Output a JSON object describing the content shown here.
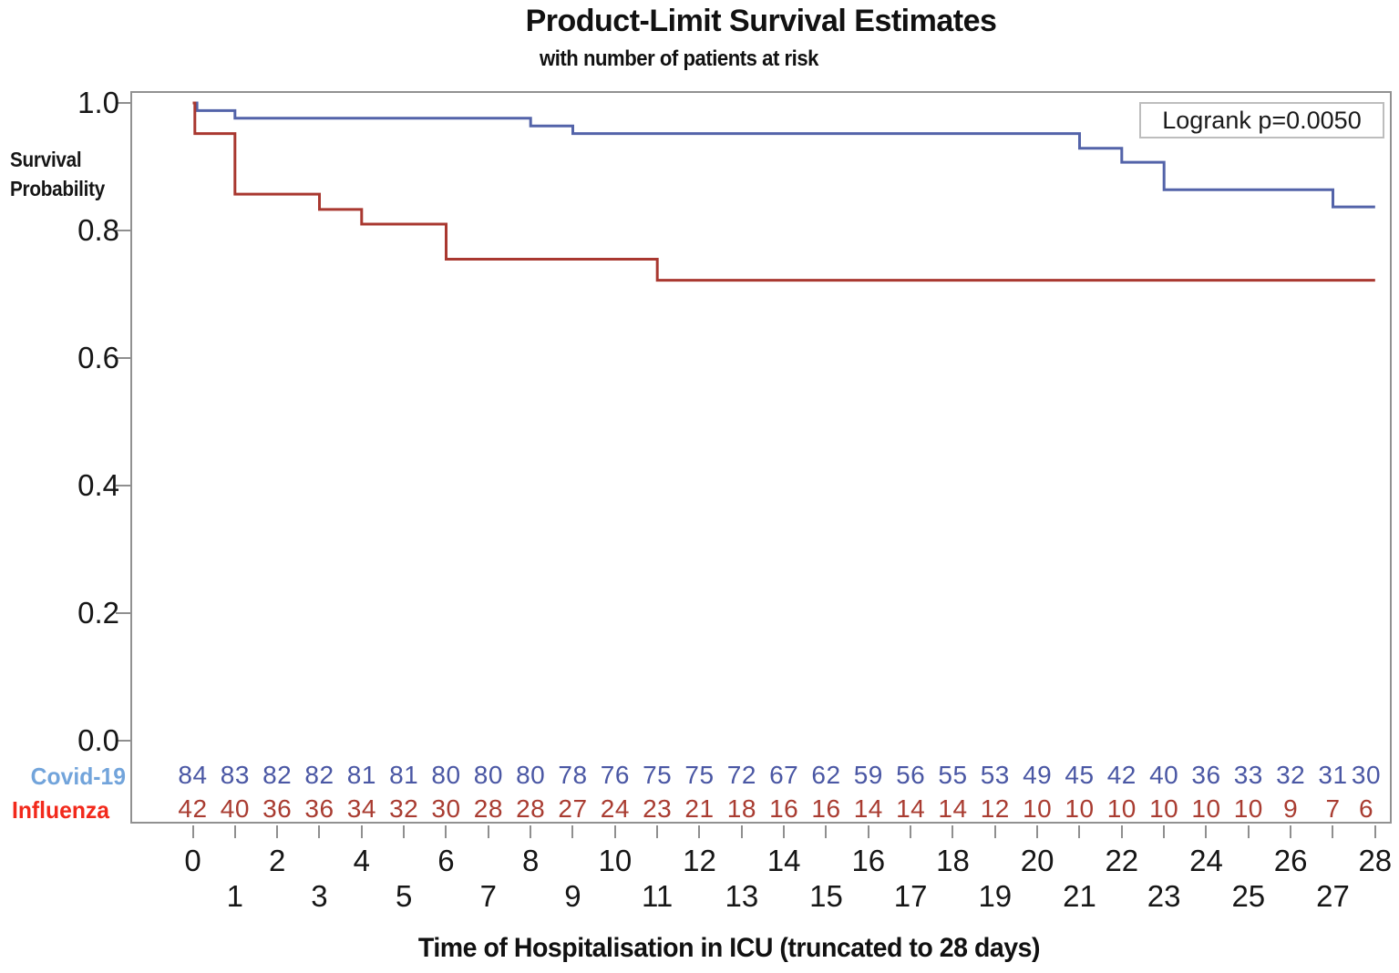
{
  "chart_data": {
    "type": "line",
    "variant": "kaplan-meier-step-plot",
    "title": "Product-Limit Survival Estimates",
    "subtitle": "with number of patients at risk",
    "xlabel": "Time of Hospitalisation in ICU (truncated to 28 days)",
    "ylabel": "Survival Probability",
    "ylabel_lines": [
      "Survival",
      "Probability"
    ],
    "annotation": "Logrank p=0.0050",
    "grid": false,
    "legend_position": "top-right-inside",
    "xlim": [
      0,
      28
    ],
    "ylim": [
      0.0,
      1.0
    ],
    "y_ticks": [
      "1.0",
      "0.8",
      "0.6",
      "0.4",
      "0.2",
      "0.0"
    ],
    "x_tick_days": [
      0,
      1,
      2,
      3,
      4,
      5,
      6,
      7,
      8,
      9,
      10,
      11,
      12,
      13,
      14,
      15,
      16,
      17,
      18,
      19,
      20,
      21,
      22,
      23,
      24,
      25,
      26,
      27,
      28
    ],
    "frame_color": "#919191",
    "tick_color": "#8f8f8f",
    "series": [
      {
        "name": "Covid-19",
        "color": "#5363A9",
        "start": [
          0,
          1.0
        ],
        "steps": [
          [
            0.1,
            0.988
          ],
          [
            1,
            0.976
          ],
          [
            8,
            0.964
          ],
          [
            9,
            0.952
          ],
          [
            21,
            0.929
          ],
          [
            22,
            0.907
          ],
          [
            23,
            0.864
          ],
          [
            27,
            0.837
          ]
        ]
      },
      {
        "name": "Influenza",
        "color": "#A93830",
        "start": [
          0,
          1.0
        ],
        "steps": [
          [
            0.05,
            0.952
          ],
          [
            1,
            0.857
          ],
          [
            3,
            0.833
          ],
          [
            4,
            0.81
          ],
          [
            6,
            0.755
          ],
          [
            11,
            0.722
          ]
        ]
      }
    ],
    "at_risk": {
      "rows": [
        {
          "label": "Covid-19",
          "label_color": "#72A4DB",
          "value_color": "#4A57A4",
          "values": [
            84,
            83,
            82,
            82,
            81,
            81,
            80,
            80,
            80,
            78,
            76,
            75,
            75,
            72,
            67,
            62,
            59,
            56,
            55,
            53,
            49,
            45,
            42,
            40,
            36,
            33,
            32,
            31,
            30
          ]
        },
        {
          "label": "Influenza",
          "label_color": "#F2291B",
          "value_color": "#A93C31",
          "values": [
            42,
            40,
            36,
            36,
            34,
            32,
            30,
            28,
            28,
            27,
            24,
            23,
            21,
            18,
            16,
            16,
            14,
            14,
            14,
            12,
            10,
            10,
            10,
            10,
            10,
            10,
            9,
            7,
            6
          ]
        }
      ]
    }
  }
}
